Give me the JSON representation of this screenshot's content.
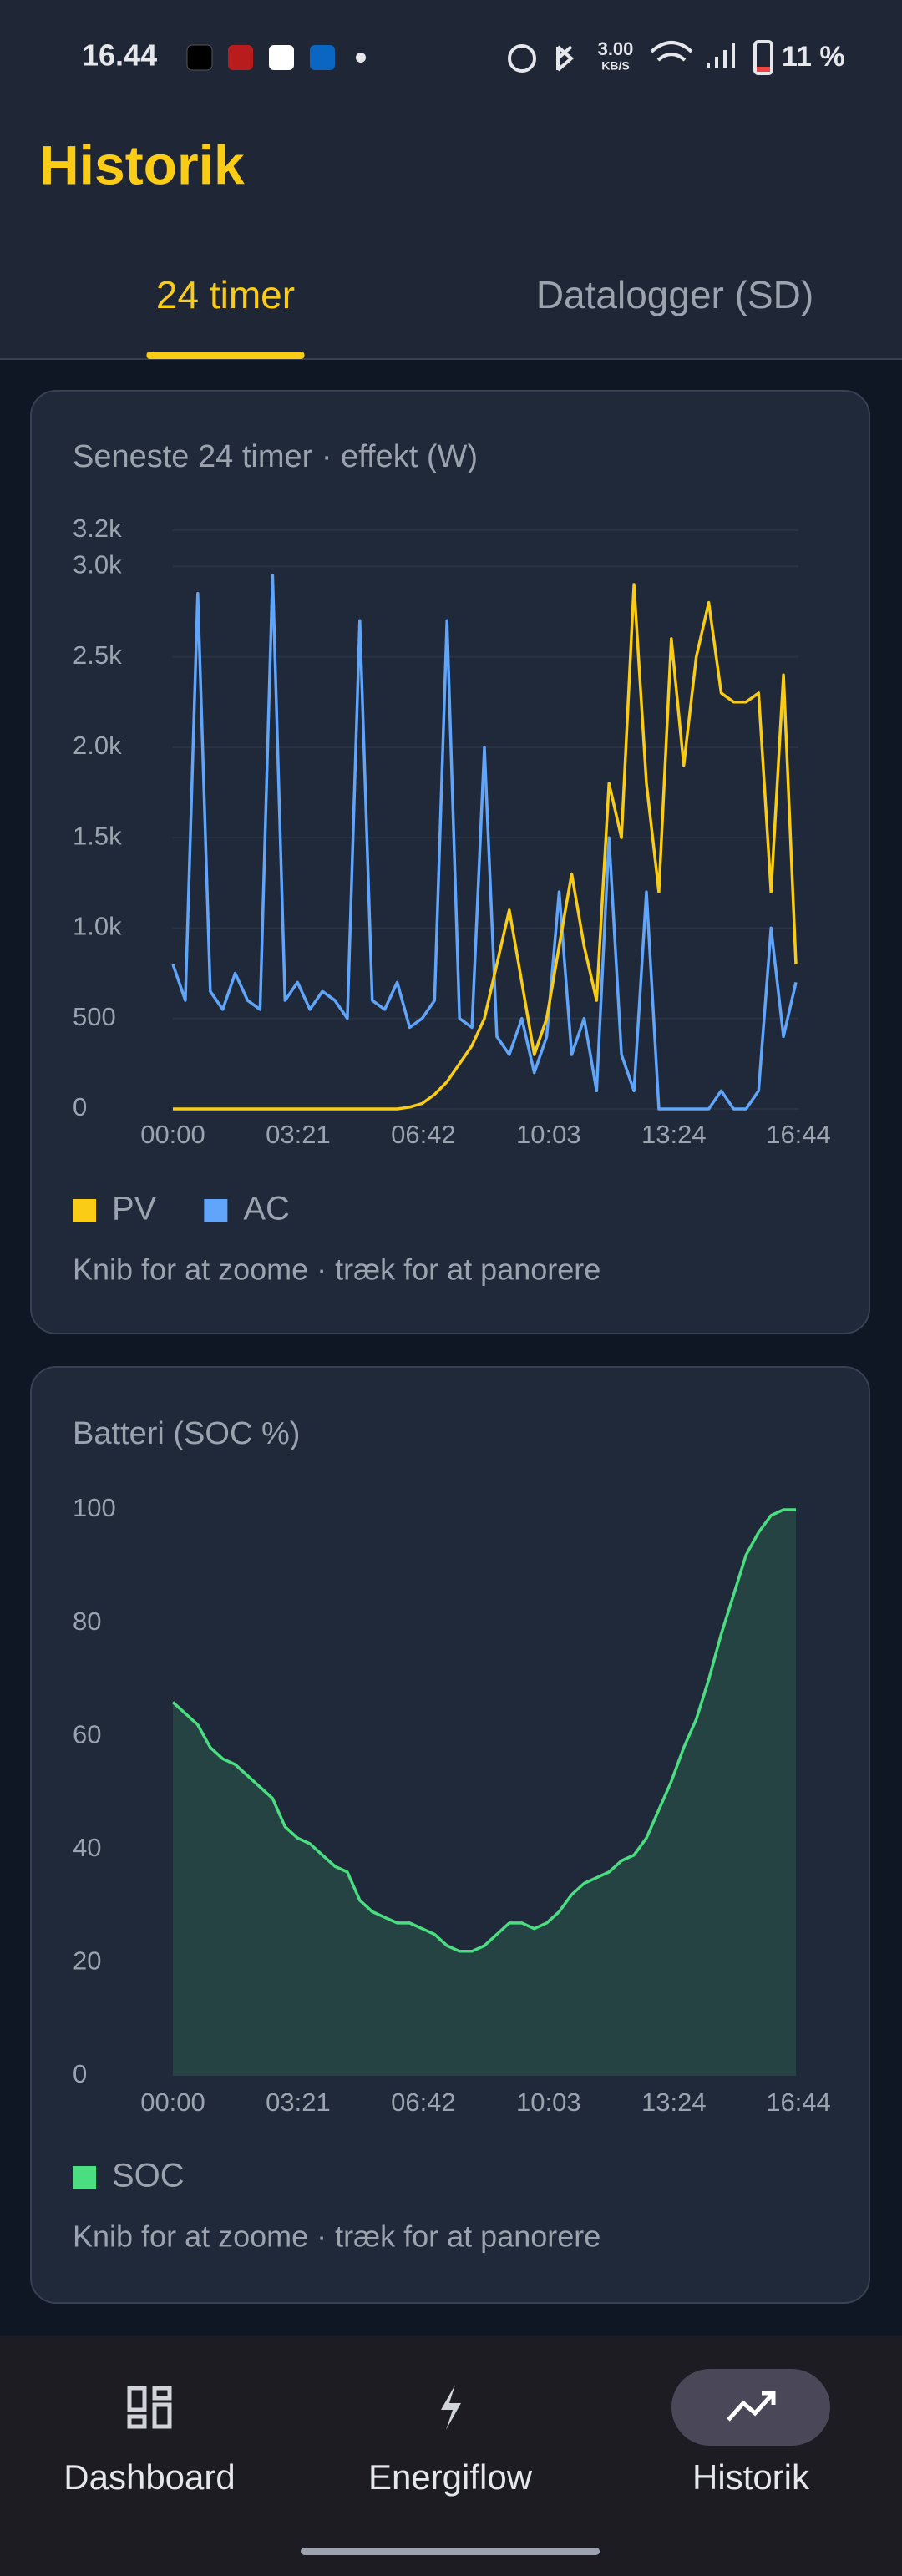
{
  "status_bar": {
    "time": "16.44",
    "net_speed": "3.00",
    "net_unit": "KB/S",
    "battery": "11 %"
  },
  "header": {
    "title": "Historik"
  },
  "tabs": {
    "items": [
      "24 timer",
      "Datalogger (SD)"
    ],
    "active": 0
  },
  "chart_data": [
    {
      "type": "line",
      "title": "Seneste 24 timer · effekt (W)",
      "x": [
        0,
        20,
        40,
        60,
        80,
        100,
        120,
        140,
        160,
        180,
        200,
        220,
        240,
        260,
        280,
        300,
        320,
        340,
        360,
        380,
        400,
        420,
        440,
        460,
        480,
        500,
        520,
        540,
        560,
        580,
        600,
        620,
        640,
        660,
        680,
        700,
        720,
        740,
        760,
        780,
        800,
        820,
        840,
        860,
        880,
        900,
        920,
        940,
        960,
        980,
        1000
      ],
      "series": [
        {
          "name": "PV",
          "color": "#facc15",
          "values": [
            0,
            0,
            0,
            0,
            0,
            0,
            0,
            0,
            0,
            0,
            0,
            0,
            0,
            0,
            0,
            0,
            0,
            0,
            0,
            10,
            30,
            80,
            150,
            250,
            350,
            500,
            800,
            1100,
            700,
            300,
            500,
            900,
            1300,
            900,
            600,
            1800,
            1500,
            2900,
            1800,
            1200,
            2600,
            1900,
            2500,
            2800,
            2300,
            2250,
            2250,
            2300,
            1200,
            2400,
            800
          ]
        },
        {
          "name": "AC",
          "color": "#60a5fa",
          "values": [
            800,
            600,
            2850,
            650,
            550,
            750,
            600,
            550,
            2950,
            600,
            700,
            550,
            650,
            600,
            500,
            2700,
            600,
            550,
            700,
            450,
            500,
            600,
            2700,
            500,
            450,
            2000,
            400,
            300,
            500,
            200,
            400,
            1200,
            300,
            500,
            100,
            1500,
            300,
            100,
            1200,
            0,
            0,
            0,
            0,
            0,
            100,
            0,
            0,
            100,
            1000,
            400,
            700
          ]
        }
      ],
      "xlim": [
        0,
        1004
      ],
      "xticks": [
        {
          "value": 0,
          "label": "00:00"
        },
        {
          "value": 201,
          "label": "03:21"
        },
        {
          "value": 402,
          "label": "06:42"
        },
        {
          "value": 603,
          "label": "10:03"
        },
        {
          "value": 804,
          "label": "13:24"
        },
        {
          "value": 1004,
          "label": "16:44"
        }
      ],
      "ylim": [
        0,
        3200
      ],
      "yticks": [
        0,
        500,
        {
          "value": 1000,
          "label": "1.0k"
        },
        {
          "value": 1500,
          "label": "1.5k"
        },
        {
          "value": 2000,
          "label": "2.0k"
        },
        {
          "value": 2500,
          "label": "2.5k"
        },
        {
          "value": 3000,
          "label": "3.0k"
        },
        {
          "value": 3200,
          "label": "3.2k"
        }
      ],
      "grid": true,
      "hint": "Knib for at zoome · træk for at panorere"
    },
    {
      "type": "area",
      "title": "Batteri (SOC %)",
      "x": [
        0,
        20,
        40,
        60,
        80,
        100,
        120,
        140,
        160,
        180,
        200,
        220,
        240,
        260,
        280,
        300,
        320,
        340,
        360,
        380,
        400,
        420,
        440,
        460,
        480,
        500,
        520,
        540,
        560,
        580,
        600,
        620,
        640,
        660,
        680,
        700,
        720,
        740,
        760,
        780,
        800,
        820,
        840,
        860,
        880,
        900,
        920,
        940,
        960,
        980,
        1000
      ],
      "series": [
        {
          "name": "SOC",
          "color": "#4ade80",
          "values": [
            66,
            64,
            62,
            58,
            56,
            55,
            53,
            51,
            49,
            44,
            42,
            41,
            39,
            37,
            36,
            31,
            29,
            28,
            27,
            27,
            26,
            25,
            23,
            22,
            22,
            23,
            25,
            27,
            27,
            26,
            27,
            29,
            32,
            34,
            35,
            36,
            38,
            39,
            42,
            47,
            52,
            58,
            63,
            70,
            78,
            85,
            92,
            96,
            99,
            100,
            100
          ]
        }
      ],
      "xlim": [
        0,
        1004
      ],
      "xticks": [
        {
          "value": 0,
          "label": "00:00"
        },
        {
          "value": 201,
          "label": "03:21"
        },
        {
          "value": 402,
          "label": "06:42"
        },
        {
          "value": 603,
          "label": "10:03"
        },
        {
          "value": 804,
          "label": "13:24"
        },
        {
          "value": 1004,
          "label": "16:44"
        }
      ],
      "ylim": [
        0,
        100
      ],
      "yticks": [
        0,
        20,
        40,
        60,
        80,
        100
      ],
      "grid": false,
      "hint": "Knib for at zoome · træk for at panorere"
    }
  ],
  "nav": {
    "items": [
      "Dashboard",
      "Energiflow",
      "Historik"
    ],
    "active": 2
  }
}
